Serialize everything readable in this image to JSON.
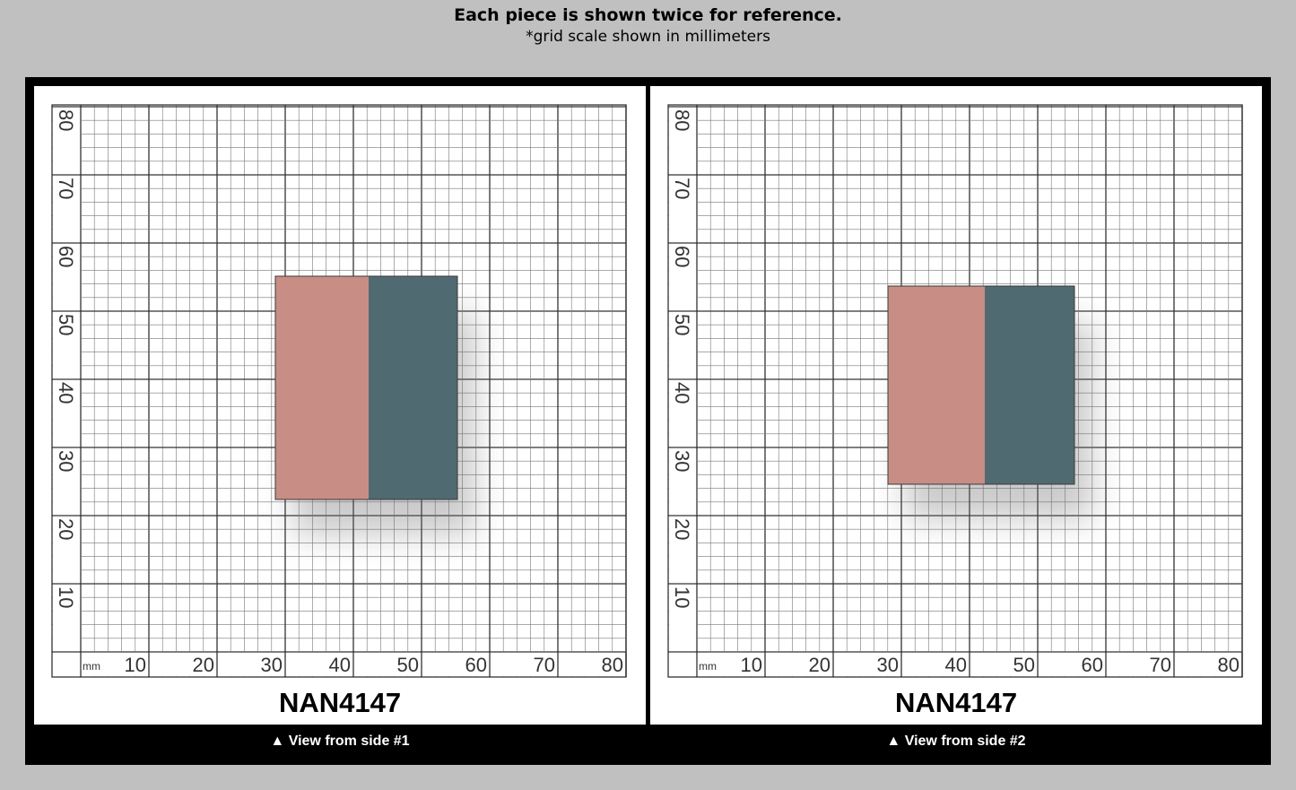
{
  "header": {
    "title": "Each piece is shown twice for reference.",
    "subtitle": "*grid scale shown in millimeters"
  },
  "panels": [
    {
      "unit": "mm",
      "x_labels": [
        10,
        20,
        30,
        40,
        50,
        60,
        70,
        80
      ],
      "y_labels": [
        10,
        20,
        30,
        40,
        50,
        60,
        70,
        80
      ],
      "product": "NAN4147",
      "caption": "▲ View from side #1"
    },
    {
      "unit": "mm",
      "x_labels": [
        10,
        20,
        30,
        40,
        50,
        60,
        70,
        80
      ],
      "y_labels": [
        10,
        20,
        30,
        40,
        50,
        60,
        70,
        80
      ],
      "product": "NAN4147",
      "caption": "▲ View from side #2"
    }
  ]
}
